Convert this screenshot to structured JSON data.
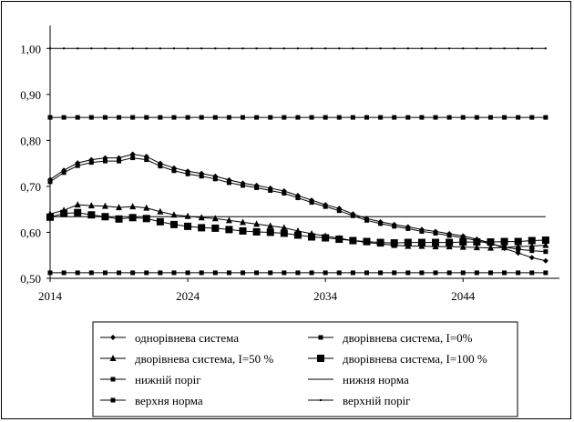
{
  "chart_data": {
    "type": "line",
    "title": "",
    "xlabel": "",
    "ylabel": "",
    "xlim": [
      2014,
      2051
    ],
    "ylim": [
      0.5,
      1.05
    ],
    "yticks": [
      "0,50",
      "0,60",
      "0,70",
      "0,80",
      "0,90",
      "1,00"
    ],
    "xticks": [
      "2014",
      "2024",
      "2034",
      "2044"
    ],
    "grid": false,
    "legend_position": "bottom",
    "x": [
      2014,
      2015,
      2016,
      2017,
      2018,
      2019,
      2020,
      2021,
      2022,
      2023,
      2024,
      2025,
      2026,
      2027,
      2028,
      2029,
      2030,
      2031,
      2032,
      2033,
      2034,
      2035,
      2036,
      2037,
      2038,
      2039,
      2040,
      2041,
      2042,
      2043,
      2044,
      2045,
      2046,
      2047,
      2048,
      2049,
      2050
    ],
    "series": [
      {
        "name": "однорівнева система",
        "marker": "diamond",
        "marker_size": 5,
        "values": [
          0.715,
          0.735,
          0.751,
          0.758,
          0.762,
          0.762,
          0.77,
          0.765,
          0.75,
          0.74,
          0.733,
          0.728,
          0.722,
          0.714,
          0.707,
          0.702,
          0.696,
          0.69,
          0.68,
          0.67,
          0.66,
          0.652,
          0.64,
          0.63,
          0.623,
          0.617,
          0.612,
          0.606,
          0.602,
          0.597,
          0.592,
          0.585,
          0.577,
          0.565,
          0.555,
          0.545,
          0.538
        ]
      },
      {
        "name": "дворівнева система, I=0%",
        "marker": "square",
        "marker_size": 5,
        "values": [
          0.71,
          0.73,
          0.745,
          0.752,
          0.755,
          0.755,
          0.762,
          0.758,
          0.744,
          0.734,
          0.727,
          0.722,
          0.716,
          0.708,
          0.702,
          0.697,
          0.691,
          0.685,
          0.675,
          0.665,
          0.656,
          0.647,
          0.636,
          0.626,
          0.619,
          0.613,
          0.608,
          0.602,
          0.598,
          0.593,
          0.588,
          0.582,
          0.575,
          0.568,
          0.563,
          0.56,
          0.558
        ]
      },
      {
        "name": "дворівнева система, I=50 %",
        "marker": "triangle",
        "marker_size": 7,
        "values": [
          0.64,
          0.648,
          0.66,
          0.658,
          0.657,
          0.654,
          0.656,
          0.653,
          0.645,
          0.638,
          0.635,
          0.632,
          0.63,
          0.626,
          0.622,
          0.618,
          0.614,
          0.61,
          0.603,
          0.597,
          0.592,
          0.587,
          0.582,
          0.578,
          0.575,
          0.572,
          0.57,
          0.57,
          0.569,
          0.569,
          0.568,
          0.567,
          0.566,
          0.567,
          0.569,
          0.57,
          0.572
        ]
      },
      {
        "name": "дворівнева система, I=100 %",
        "marker": "square",
        "marker_size": 8,
        "values": [
          0.633,
          0.641,
          0.643,
          0.638,
          0.634,
          0.629,
          0.632,
          0.63,
          0.623,
          0.617,
          0.613,
          0.61,
          0.609,
          0.606,
          0.603,
          0.601,
          0.6,
          0.598,
          0.594,
          0.59,
          0.588,
          0.585,
          0.582,
          0.58,
          0.578,
          0.577,
          0.578,
          0.578,
          0.578,
          0.578,
          0.579,
          0.579,
          0.579,
          0.58,
          0.58,
          0.582,
          0.583
        ]
      },
      {
        "name": "нижній поріг",
        "marker": "square",
        "marker_size": 5,
        "constant": 0.512
      },
      {
        "name": "нижня норма",
        "marker": "none",
        "constant": 0.634
      },
      {
        "name": "верхня норма",
        "marker": "square",
        "marker_size": 5,
        "constant": 0.85
      },
      {
        "name": "верхній поріг",
        "marker": "dot",
        "constant": 1.0
      }
    ]
  }
}
